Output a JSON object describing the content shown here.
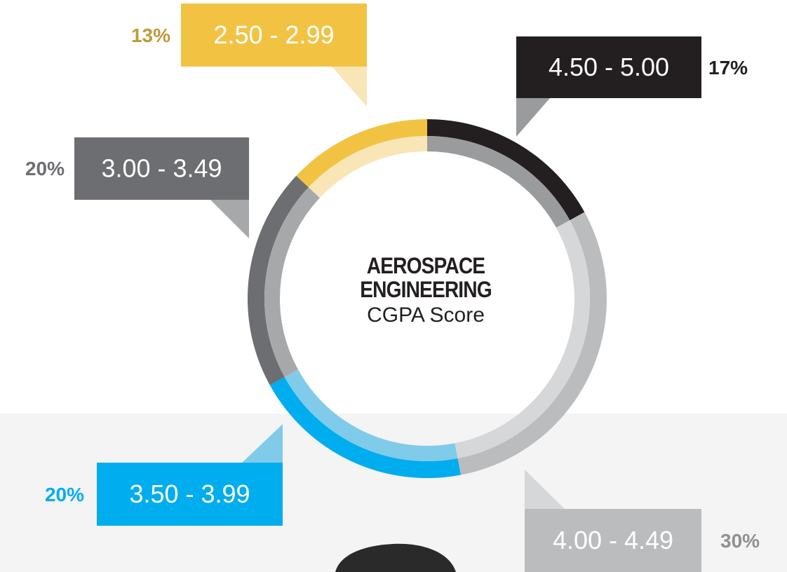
{
  "chart_data": {
    "type": "donut",
    "title": "AEROSPACE ENGINEERING",
    "subtitle": "CGPA Score",
    "categories": [
      "4.50 - 5.00",
      "4.00 - 4.49",
      "3.50 - 3.99",
      "3.00 - 3.49",
      "2.50 - 2.99"
    ],
    "values": [
      17,
      30,
      20,
      20,
      13
    ],
    "value_labels": [
      "17%",
      "30%",
      "20%",
      "20%",
      "13%"
    ],
    "colors": [
      "#231f20",
      "#bbbcbe",
      "#00adee",
      "#6d6e71",
      "#f2c343"
    ],
    "inner_colors": [
      "#9a9b9d",
      "#d6d7d9",
      "#80cbe9",
      "#a7a8aa",
      "#f8e6b6"
    ],
    "label_colors": [
      "#231f20",
      "#8f9092",
      "#00adee",
      "#6d6e71",
      "#c09a3c"
    ]
  }
}
